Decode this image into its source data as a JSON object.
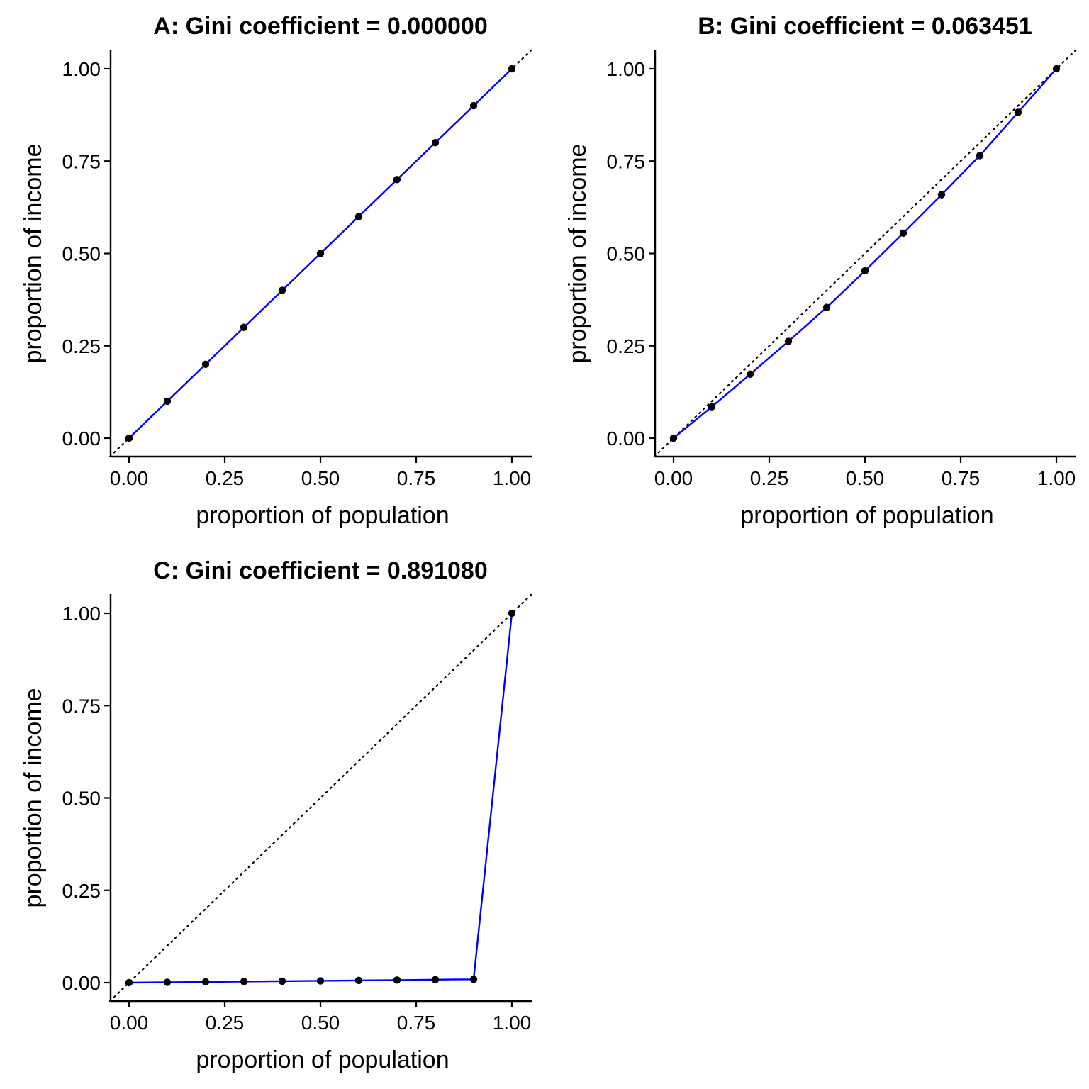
{
  "colors": {
    "curve": "#0000ff",
    "point": "#000000",
    "axis": "#000000",
    "diagonal": "#000000"
  },
  "chart_data": [
    {
      "type": "line",
      "title": "A: Gini coefficient = 0.000000",
      "xlabel": "proportion of population",
      "ylabel": "proportion of income",
      "xlim": [
        0,
        1
      ],
      "ylim": [
        0,
        1
      ],
      "xticks": [
        "0.00",
        "0.25",
        "0.50",
        "0.75",
        "1.00"
      ],
      "yticks": [
        "0.00",
        "0.25",
        "0.50",
        "0.75",
        "1.00"
      ],
      "grid": false,
      "reference_line": "y = x (dotted)",
      "x": [
        0.0,
        0.1,
        0.2,
        0.3,
        0.4,
        0.5,
        0.6,
        0.7,
        0.8,
        0.9,
        1.0
      ],
      "y": [
        0.0,
        0.1,
        0.2,
        0.3,
        0.4,
        0.5,
        0.6,
        0.7,
        0.8,
        0.9,
        1.0
      ]
    },
    {
      "type": "line",
      "title": "B: Gini coefficient = 0.063451",
      "xlabel": "proportion of population",
      "ylabel": "proportion of income",
      "xlim": [
        0,
        1
      ],
      "ylim": [
        0,
        1
      ],
      "xticks": [
        "0.00",
        "0.25",
        "0.50",
        "0.75",
        "1.00"
      ],
      "yticks": [
        "0.00",
        "0.25",
        "0.50",
        "0.75",
        "1.00"
      ],
      "grid": false,
      "reference_line": "y = x (dotted)",
      "x": [
        0.0,
        0.1,
        0.2,
        0.3,
        0.4,
        0.5,
        0.6,
        0.7,
        0.8,
        0.9,
        1.0
      ],
      "y": [
        0.0,
        0.085,
        0.173,
        0.262,
        0.354,
        0.453,
        0.555,
        0.659,
        0.765,
        0.882,
        1.0
      ]
    },
    {
      "type": "line",
      "title": "C: Gini coefficient = 0.891080",
      "xlabel": "proportion of population",
      "ylabel": "proportion of income",
      "xlim": [
        0,
        1
      ],
      "ylim": [
        0,
        1
      ],
      "xticks": [
        "0.00",
        "0.25",
        "0.50",
        "0.75",
        "1.00"
      ],
      "yticks": [
        "0.00",
        "0.25",
        "0.50",
        "0.75",
        "1.00"
      ],
      "grid": false,
      "reference_line": "y = x (dotted)",
      "x": [
        0.0,
        0.1,
        0.2,
        0.3,
        0.4,
        0.5,
        0.6,
        0.7,
        0.8,
        0.9,
        1.0
      ],
      "y": [
        0.0,
        0.001,
        0.002,
        0.003,
        0.004,
        0.005,
        0.006,
        0.007,
        0.008,
        0.009,
        1.0
      ]
    }
  ]
}
